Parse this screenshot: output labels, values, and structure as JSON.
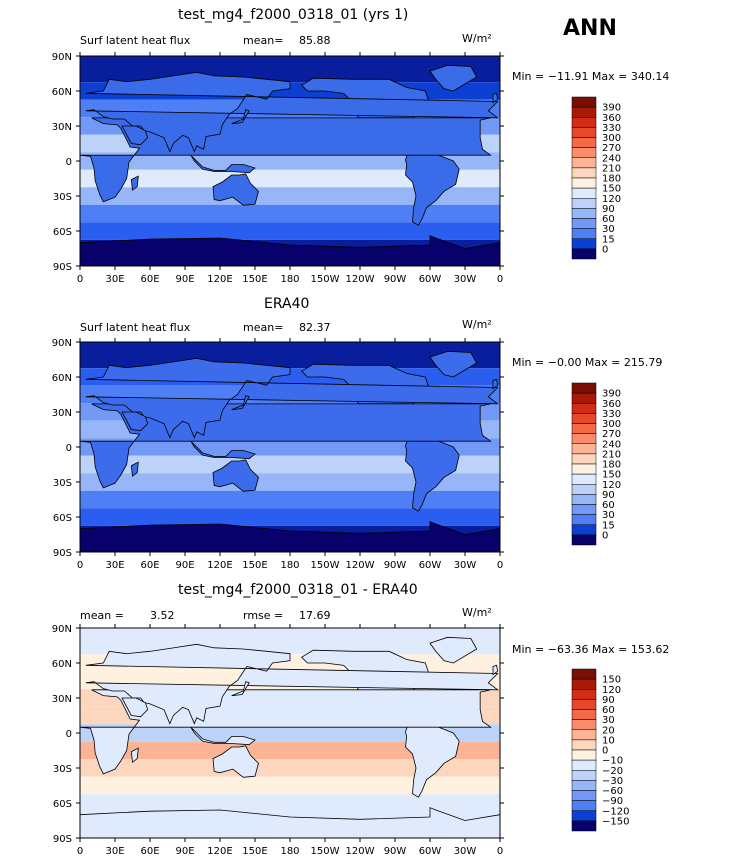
{
  "season": "ANN",
  "units": "W/m²",
  "colors": {
    "blues": [
      "#08006b",
      "#081e9c",
      "#0c3fd4",
      "#2a5ef0",
      "#4f7ff5",
      "#7299f6",
      "#97b6f7",
      "#bcd2f9",
      "#dfeafc"
    ],
    "reds": [
      "#fff1e0",
      "#fdd7bd",
      "#fcb496",
      "#fa8c6c",
      "#f26a48",
      "#e6482a",
      "#d12d14",
      "#a81a08",
      "#7a0e03"
    ],
    "land_test": "#3a6be8",
    "land_obs": "#3c6bec",
    "diff_land": "#dfeafc"
  },
  "panels": [
    {
      "title": "test_mg4_f2000_0318_01 (yrs 1)",
      "left_label": "Surf latent heat flux",
      "stat1_label": "mean=",
      "stat1_value": "85.88",
      "stat2_label": "",
      "stat2_value": "",
      "minmax": "Min = −11.91 Max = 340.14",
      "colorbar_labels": [
        "390",
        "360",
        "330",
        "300",
        "270",
        "240",
        "210",
        "180",
        "150",
        "120",
        "90",
        "60",
        "30",
        "15",
        "0"
      ]
    },
    {
      "title": "ERA40",
      "left_label": "Surf latent heat flux",
      "stat1_label": "mean=",
      "stat1_value": "82.37",
      "stat2_label": "",
      "stat2_value": "",
      "minmax": "Min =  −0.00 Max = 215.79",
      "colorbar_labels": [
        "390",
        "360",
        "330",
        "300",
        "270",
        "240",
        "210",
        "180",
        "150",
        "120",
        "90",
        "60",
        "30",
        "15",
        "0"
      ]
    },
    {
      "title": "test_mg4_f2000_0318_01 - ERA40",
      "left_label": "mean =",
      "stat1_label": "",
      "stat1_value": "3.52",
      "stat2_label": "rmse =",
      "stat2_value": "17.69",
      "minmax": "Min = −63.36 Max = 153.62",
      "colorbar_labels": [
        "150",
        "120",
        "90",
        "60",
        "30",
        "20",
        "10",
        "0",
        "−10",
        "−20",
        "−30",
        "−60",
        "−90",
        "−120",
        "−150"
      ]
    }
  ],
  "chart_data": [
    {
      "type": "heatmap",
      "title": "test_mg4_f2000_0318_01 (yrs 1)",
      "variable": "Surf latent heat flux",
      "units": "W/m²",
      "mean": 85.88,
      "min": -11.91,
      "max": 340.14,
      "contour_levels": [
        0,
        15,
        30,
        60,
        90,
        120,
        150,
        180,
        210,
        240,
        270,
        300,
        330,
        360,
        390
      ],
      "x_ticks": [
        "0",
        "30E",
        "60E",
        "90E",
        "120E",
        "150E",
        "180",
        "150W",
        "120W",
        "90W",
        "60W",
        "30W",
        "0"
      ],
      "y_ticks": [
        "90N",
        "60N",
        "30N",
        "0",
        "30S",
        "60S",
        "90S"
      ],
      "xlim": [
        0,
        360
      ],
      "ylim": [
        -90,
        90
      ],
      "zonal_mean_profile": {
        "lat": [
          75,
          60,
          45,
          30,
          15,
          0,
          -15,
          -30,
          -45,
          -60,
          -75
        ],
        "value": [
          10,
          30,
          70,
          120,
          170,
          130,
          190,
          140,
          90,
          40,
          10
        ]
      }
    },
    {
      "type": "heatmap",
      "title": "ERA40",
      "variable": "Surf latent heat flux",
      "units": "W/m²",
      "mean": 82.37,
      "min": -0.0,
      "max": 215.79,
      "contour_levels": [
        0,
        15,
        30,
        60,
        90,
        120,
        150,
        180,
        210,
        240,
        270,
        300,
        330,
        360,
        390
      ],
      "x_ticks": [
        "0",
        "30E",
        "60E",
        "90E",
        "120E",
        "150E",
        "180",
        "150W",
        "120W",
        "90W",
        "60W",
        "30W",
        "0"
      ],
      "y_ticks": [
        "90N",
        "60N",
        "30N",
        "0",
        "30S",
        "60S",
        "90S"
      ],
      "xlim": [
        0,
        360
      ],
      "ylim": [
        -90,
        90
      ],
      "zonal_mean_profile": {
        "lat": [
          75,
          60,
          45,
          30,
          15,
          0,
          -15,
          -30,
          -45,
          -60,
          -75
        ],
        "value": [
          10,
          35,
          65,
          110,
          150,
          120,
          160,
          130,
          85,
          40,
          10
        ]
      }
    },
    {
      "type": "heatmap",
      "title": "test_mg4_f2000_0318_01 - ERA40",
      "units": "W/m²",
      "mean": 3.52,
      "rmse": 17.69,
      "min": -63.36,
      "max": 153.62,
      "contour_levels": [
        -150,
        -120,
        -90,
        -60,
        -30,
        -20,
        -10,
        0,
        10,
        20,
        30,
        60,
        90,
        120,
        150
      ],
      "x_ticks": [
        "0",
        "30E",
        "60E",
        "90E",
        "120E",
        "150E",
        "180",
        "150W",
        "120W",
        "90W",
        "60W",
        "30W",
        "0"
      ],
      "y_ticks": [
        "90N",
        "60N",
        "30N",
        "0",
        "30S",
        "60S",
        "90S"
      ],
      "xlim": [
        0,
        360
      ],
      "ylim": [
        -90,
        90
      ],
      "zonal_mean_profile": {
        "lat": [
          75,
          60,
          45,
          30,
          15,
          0,
          -15,
          -30,
          -45,
          -60,
          -75
        ],
        "value": [
          0,
          5,
          5,
          15,
          20,
          -10,
          30,
          15,
          5,
          0,
          0
        ]
      }
    }
  ]
}
